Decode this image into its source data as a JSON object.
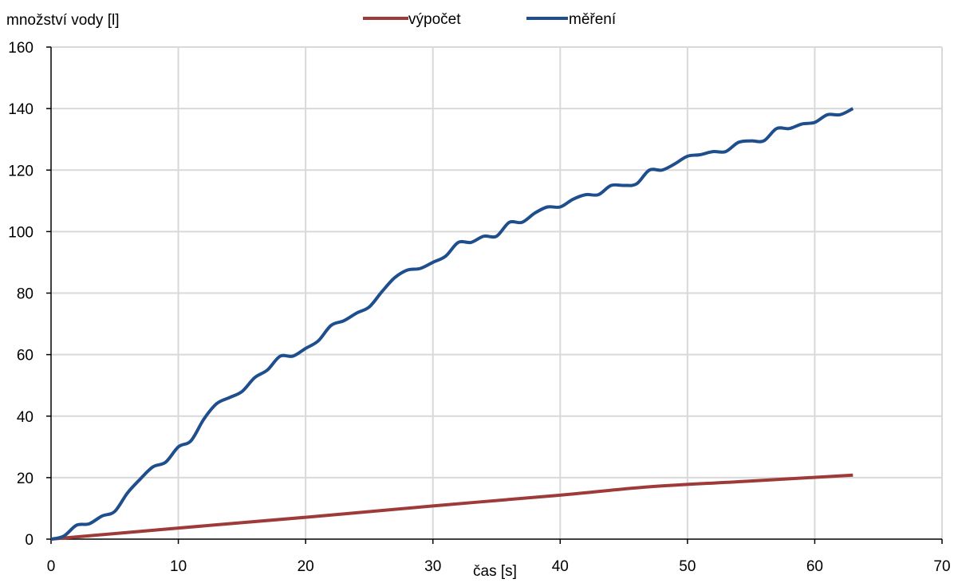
{
  "chart_data": {
    "type": "line",
    "title": "",
    "ylabel": "množství vody [l]",
    "xlabel": "čas [s]",
    "xlim": [
      0,
      70
    ],
    "ylim": [
      0,
      160
    ],
    "xticks": [
      0,
      10,
      20,
      30,
      40,
      50,
      60,
      70
    ],
    "yticks": [
      0,
      20,
      40,
      60,
      80,
      100,
      120,
      140,
      160
    ],
    "grid": true,
    "legend_position": "top",
    "series": [
      {
        "name": "výpočet",
        "color": "#9e3a38",
        "x": [
          0,
          10,
          20,
          30,
          40,
          47,
          55,
          63
        ],
        "y": [
          0,
          3.6,
          7.1,
          10.8,
          14.3,
          17.0,
          18.9,
          20.8
        ]
      },
      {
        "name": "měření",
        "color": "#1f4e8c",
        "x": [
          0,
          1,
          2,
          3,
          4,
          5,
          6,
          7,
          8,
          9,
          10,
          11,
          12,
          13,
          14,
          15,
          16,
          17,
          18,
          19,
          20,
          21,
          22,
          23,
          24,
          25,
          26,
          27,
          28,
          29,
          30,
          31,
          32,
          33,
          34,
          35,
          36,
          37,
          38,
          39,
          40,
          41,
          42,
          43,
          44,
          45,
          46,
          47,
          48,
          49,
          50,
          51,
          52,
          53,
          54,
          55,
          56,
          57,
          58,
          59,
          60,
          61,
          62,
          63
        ],
        "y": [
          0,
          1,
          4.5,
          5,
          7.5,
          9,
          15,
          19.5,
          23.5,
          25,
          30,
          32,
          39,
          44,
          46,
          48,
          52.5,
          55,
          59.5,
          59.5,
          62,
          64.5,
          69.5,
          71,
          73.5,
          75.5,
          80.5,
          85,
          87.5,
          88,
          90,
          92,
          96.5,
          96.5,
          98.5,
          98.5,
          103,
          103,
          106,
          108,
          108,
          110.5,
          112,
          112,
          115,
          115,
          115.5,
          120,
          120,
          122,
          124.5,
          125,
          126,
          126,
          129,
          129.5,
          129.5,
          133.5,
          133.5,
          135,
          135.5,
          138,
          138,
          140
        ]
      }
    ]
  }
}
